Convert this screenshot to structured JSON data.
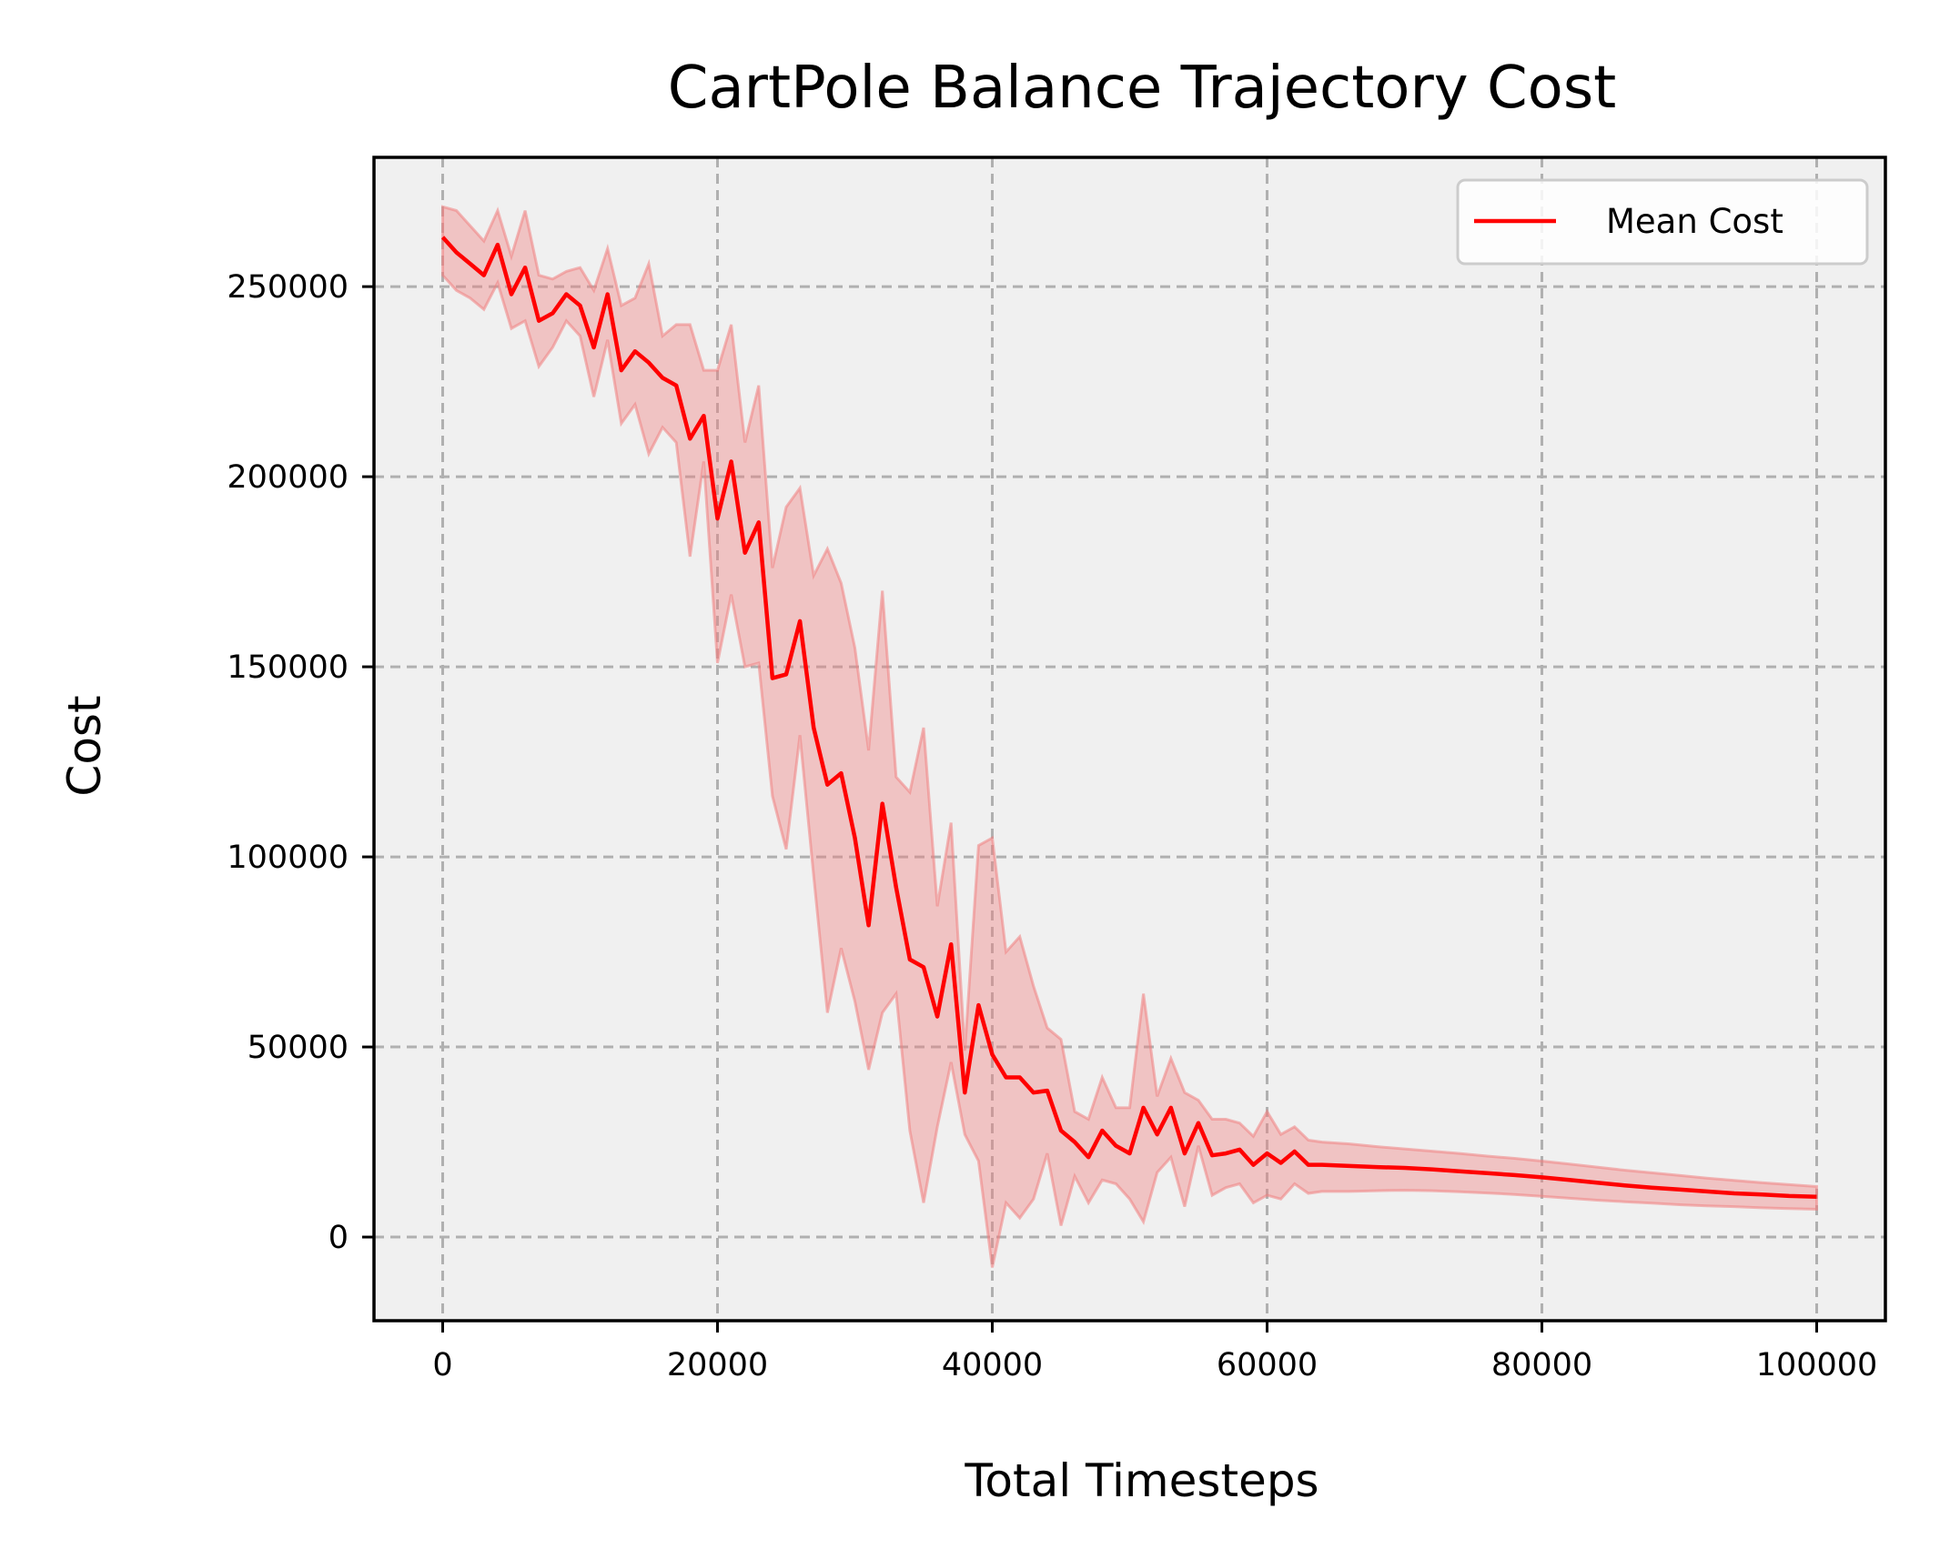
{
  "chart_data": {
    "type": "line",
    "title": "CartPole Balance Trajectory Cost",
    "xlabel": "Total Timesteps",
    "ylabel": "Cost",
    "xlim": [
      -5000,
      105000
    ],
    "ylim": [
      -22000,
      284000
    ],
    "xticks": [
      0,
      20000,
      40000,
      60000,
      80000,
      100000
    ],
    "yticks": [
      0,
      50000,
      100000,
      150000,
      200000,
      250000
    ],
    "grid": true,
    "legend_position": "upper right",
    "colors": {
      "line": "#ff0000",
      "band": "#f08080",
      "background": "#f0f0f0",
      "grid": "#b0b0b0"
    },
    "series": [
      {
        "name": "Mean Cost",
        "x": [
          0,
          1000,
          2000,
          3000,
          4000,
          5000,
          6000,
          7000,
          8000,
          9000,
          10000,
          11000,
          12000,
          13000,
          14000,
          15000,
          16000,
          17000,
          18000,
          19000,
          20000,
          21000,
          22000,
          23000,
          24000,
          25000,
          26000,
          27000,
          28000,
          29000,
          30000,
          31000,
          32000,
          33000,
          34000,
          35000,
          36000,
          37000,
          38000,
          39000,
          40000,
          41000,
          42000,
          43000,
          44000,
          45000,
          46000,
          47000,
          48000,
          49000,
          50000,
          51000,
          52000,
          53000,
          54000,
          55000,
          56000,
          57000,
          58000,
          59000,
          60000,
          61000,
          62000,
          63000,
          64000,
          66000,
          68000,
          70000,
          72000,
          74000,
          76000,
          78000,
          80000,
          82000,
          84000,
          86000,
          88000,
          90000,
          92000,
          94000,
          96000,
          98000,
          100000
        ],
        "y": [
          263000,
          259000,
          256000,
          253000,
          261000,
          248000,
          255000,
          241000,
          243000,
          248000,
          245000,
          234000,
          248000,
          228000,
          233000,
          230000,
          226000,
          224000,
          210000,
          216000,
          189000,
          204000,
          180000,
          188000,
          147000,
          148000,
          162000,
          134000,
          119000,
          122000,
          105000,
          82000,
          114000,
          92000,
          73000,
          71000,
          58000,
          77000,
          38000,
          61000,
          48000,
          42000,
          42000,
          38000,
          38500,
          28000,
          25000,
          21000,
          28000,
          24000,
          22000,
          34000,
          27000,
          34000,
          22000,
          30000,
          21500,
          22000,
          23000,
          19000,
          22000,
          19500,
          22500,
          19000,
          19000,
          18700,
          18400,
          18200,
          17800,
          17300,
          16800,
          16300,
          15700,
          15000,
          14300,
          13600,
          13000,
          12500,
          12000,
          11500,
          11200,
          10800,
          10600
        ],
        "upper": [
          271000,
          270000,
          266000,
          262000,
          270000,
          258000,
          270000,
          253000,
          252000,
          254000,
          255000,
          249000,
          260000,
          245000,
          247000,
          256000,
          237000,
          240000,
          240000,
          228000,
          228000,
          240000,
          209000,
          224000,
          176000,
          192000,
          197000,
          174000,
          181000,
          172000,
          155000,
          128000,
          170000,
          121000,
          117000,
          134000,
          87000,
          109000,
          49000,
          103000,
          105000,
          75000,
          79000,
          66000,
          55000,
          52000,
          33000,
          31000,
          42000,
          34000,
          34000,
          64000,
          37000,
          47000,
          38000,
          36000,
          31000,
          31000,
          30000,
          26500,
          33000,
          27000,
          29000,
          25500,
          25000,
          24500,
          23800,
          23200,
          22600,
          22000,
          21300,
          20700,
          20000,
          19200,
          18400,
          17600,
          16900,
          16200,
          15500,
          14900,
          14300,
          13800,
          13300
        ],
        "lower": [
          253000,
          249000,
          247000,
          244000,
          251000,
          239000,
          241000,
          229000,
          234000,
          241000,
          237000,
          221000,
          236000,
          214000,
          219000,
          206000,
          213000,
          209000,
          179000,
          204000,
          151000,
          169000,
          150000,
          151000,
          116000,
          102000,
          132000,
          95000,
          59000,
          76000,
          62000,
          44000,
          59000,
          64000,
          28000,
          9000,
          29000,
          46000,
          27000,
          20000,
          -8000,
          9000,
          5000,
          10000,
          22000,
          3000,
          16000,
          9000,
          15000,
          14000,
          10000,
          4000,
          17000,
          21000,
          8000,
          24000,
          11000,
          13000,
          14000,
          9000,
          11000,
          10000,
          14000,
          11500,
          12000,
          12000,
          12200,
          12300,
          12200,
          11900,
          11600,
          11200,
          10700,
          10200,
          9700,
          9300,
          8900,
          8500,
          8200,
          8000,
          7700,
          7500,
          7300
        ]
      }
    ]
  }
}
